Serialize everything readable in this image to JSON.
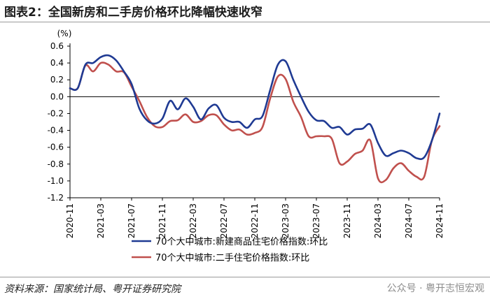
{
  "header": {
    "title": "图表2：全国新房和二手房价格环比降幅快速收窄"
  },
  "footer": {
    "source": "资料来源：国家统计局、粤开证券研究院",
    "watermark": "公众号 · 粤开志恒宏观"
  },
  "colors": {
    "new_home": "#1f3a93",
    "second_hand": "#c0504d",
    "axis": "#000000"
  },
  "chart_data": {
    "type": "line",
    "title": "全国新房和二手房价格环比降幅快速收窄",
    "ylabel": "(%)",
    "ylim": [
      -1.2,
      0.6
    ],
    "yticks": [
      0.6,
      0.4,
      0.2,
      0.0,
      -0.2,
      -0.4,
      -0.6,
      -0.8,
      -1.0,
      -1.2
    ],
    "ytick_labels": [
      "0.6",
      "0.4",
      "0.2",
      "0.0",
      "-0.2",
      "-0.4",
      "-0.6",
      "-0.8",
      "-1.0",
      "-1.2"
    ],
    "xtick_labels": [
      "2020-11",
      "2021-03",
      "2021-07",
      "2021-11",
      "2022-03",
      "2022-07",
      "2022-11",
      "2023-03",
      "2023-07",
      "2023-11",
      "2024-03",
      "2024-07",
      "2024-11"
    ],
    "xtick_step": 4,
    "legend_position": "bottom",
    "categories": [
      "2020-11",
      "2020-12",
      "2021-01",
      "2021-02",
      "2021-03",
      "2021-04",
      "2021-05",
      "2021-06",
      "2021-07",
      "2021-08",
      "2021-09",
      "2021-10",
      "2021-11",
      "2021-12",
      "2022-01",
      "2022-02",
      "2022-03",
      "2022-04",
      "2022-05",
      "2022-06",
      "2022-07",
      "2022-08",
      "2022-09",
      "2022-10",
      "2022-11",
      "2022-12",
      "2023-01",
      "2023-02",
      "2023-03",
      "2023-04",
      "2023-05",
      "2023-06",
      "2023-07",
      "2023-08",
      "2023-09",
      "2023-10",
      "2023-11",
      "2023-12",
      "2024-01",
      "2024-02",
      "2024-03",
      "2024-04",
      "2024-05",
      "2024-06",
      "2024-07",
      "2024-08",
      "2024-09",
      "2024-10",
      "2024-11"
    ],
    "series": [
      {
        "name": "70个大中城市:新建商品住宅价格指数:环比",
        "color": "#1f3a93",
        "values": [
          0.1,
          0.1,
          0.38,
          0.4,
          0.47,
          0.49,
          0.43,
          0.3,
          0.15,
          -0.14,
          -0.28,
          -0.32,
          -0.26,
          -0.05,
          -0.15,
          -0.02,
          -0.12,
          -0.27,
          -0.14,
          -0.1,
          -0.25,
          -0.3,
          -0.3,
          -0.37,
          -0.27,
          -0.23,
          0.08,
          0.38,
          0.42,
          0.2,
          0.0,
          -0.18,
          -0.28,
          -0.29,
          -0.37,
          -0.36,
          -0.45,
          -0.39,
          -0.38,
          -0.33,
          -0.55,
          -0.7,
          -0.67,
          -0.64,
          -0.67,
          -0.73,
          -0.72,
          -0.52,
          -0.2
        ]
      },
      {
        "name": "70个大中城市:二手住宅价格指数:环比",
        "color": "#c0504d",
        "values": [
          0.1,
          0.1,
          0.37,
          0.3,
          0.4,
          0.38,
          0.3,
          0.29,
          0.12,
          -0.05,
          -0.24,
          -0.35,
          -0.36,
          -0.29,
          -0.28,
          -0.21,
          -0.3,
          -0.29,
          -0.22,
          -0.22,
          -0.33,
          -0.4,
          -0.39,
          -0.45,
          -0.43,
          -0.36,
          -0.02,
          0.24,
          0.21,
          -0.06,
          -0.24,
          -0.47,
          -0.47,
          -0.47,
          -0.5,
          -0.79,
          -0.77,
          -0.68,
          -0.64,
          -0.52,
          -0.97,
          -0.99,
          -0.85,
          -0.79,
          -0.88,
          -0.95,
          -0.95,
          -0.52,
          -0.35
        ]
      }
    ]
  }
}
